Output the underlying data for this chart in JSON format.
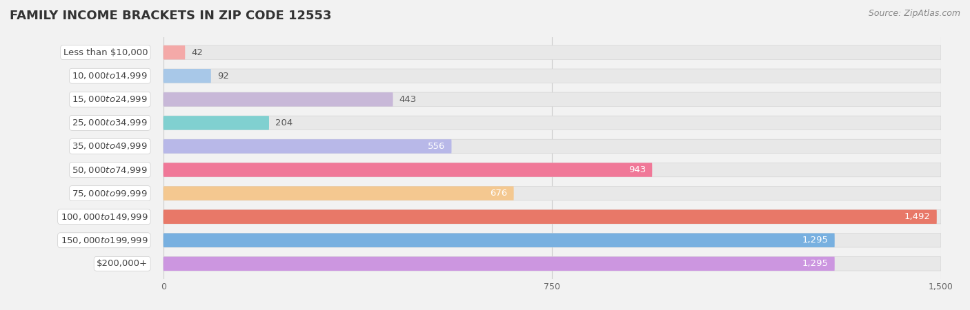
{
  "title": "FAMILY INCOME BRACKETS IN ZIP CODE 12553",
  "source": "Source: ZipAtlas.com",
  "categories": [
    "Less than $10,000",
    "$10,000 to $14,999",
    "$15,000 to $24,999",
    "$25,000 to $34,999",
    "$35,000 to $49,999",
    "$50,000 to $74,999",
    "$75,000 to $99,999",
    "$100,000 to $149,999",
    "$150,000 to $199,999",
    "$200,000+"
  ],
  "values": [
    42,
    92,
    443,
    204,
    556,
    943,
    676,
    1492,
    1295,
    1295
  ],
  "bar_colors": [
    "#f4a9a8",
    "#a8c8e8",
    "#c8b8d8",
    "#80d0d0",
    "#b8b8e8",
    "#f07898",
    "#f4c890",
    "#e87868",
    "#78b0e0",
    "#cc96e0"
  ],
  "value_threshold": 500,
  "xlim": [
    0,
    1500
  ],
  "xticks": [
    0,
    750,
    1500
  ],
  "background_color": "#f2f2f2",
  "bar_bg_color": "#e8e8e8",
  "title_fontsize": 13,
  "source_fontsize": 9,
  "category_fontsize": 9.5,
  "value_fontsize": 9.5
}
